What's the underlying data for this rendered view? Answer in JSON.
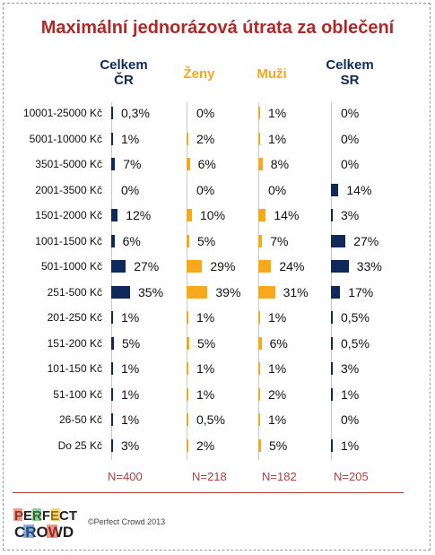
{
  "title": "Maximální jednorázová útrata za oblečení",
  "copyright": "©Perfect Crowd 2013",
  "logo": {
    "line1": "PERFECT",
    "line2": "CROWD"
  },
  "colors": {
    "dark": "#0f2a5a",
    "orange": "#f7a81b",
    "title": "#b02828",
    "n": "#b04040"
  },
  "chart_data": {
    "type": "bar",
    "title": "Maximální jednorázová útrata za oblečení",
    "categories": [
      "10001-25000 Kč",
      "5001-10000 Kč",
      "3501-5000 Kč",
      "2001-3500 Kč",
      "1501-2000 Kč",
      "1001-1500 Kč",
      "501-1000 Kč",
      "251-500 Kč",
      "201-250 Kč",
      "151-200 Kč",
      "101-150 Kč",
      "51-100 Kč",
      "26-50 Kč",
      "Do 25 Kč"
    ],
    "series": [
      {
        "name": "Celkem ČR",
        "head1": "Celkem",
        "head2": "ČR",
        "color": "#0f2a5a",
        "n": "N=400",
        "values": [
          0.3,
          1,
          7,
          0,
          12,
          6,
          27,
          35,
          1,
          5,
          1,
          1,
          1,
          3
        ],
        "labels": [
          "0,3%",
          "1%",
          "7%",
          "0%",
          "12%",
          "6%",
          "27%",
          "35%",
          "1%",
          "5%",
          "1%",
          "1%",
          "1%",
          "3%"
        ]
      },
      {
        "name": "Ženy",
        "head1": "Ženy",
        "head2": "",
        "color": "#f7a81b",
        "n": "N=218",
        "values": [
          0,
          2,
          6,
          0,
          10,
          5,
          29,
          39,
          1,
          5,
          1,
          1,
          0.5,
          2
        ],
        "labels": [
          "0%",
          "2%",
          "6%",
          "0%",
          "10%",
          "5%",
          "29%",
          "39%",
          "1%",
          "5%",
          "1%",
          "1%",
          "0,5%",
          "2%"
        ]
      },
      {
        "name": "Muži",
        "head1": "Muži",
        "head2": "",
        "color": "#f7a81b",
        "n": "N=182",
        "values": [
          1,
          1,
          8,
          0,
          14,
          7,
          24,
          31,
          1,
          6,
          1,
          2,
          1,
          5
        ],
        "labels": [
          "1%",
          "1%",
          "8%",
          "0%",
          "14%",
          "7%",
          "24%",
          "31%",
          "1%",
          "6%",
          "1%",
          "2%",
          "1%",
          "5%"
        ]
      },
      {
        "name": "Celkem SR",
        "head1": "Celkem",
        "head2": "SR",
        "color": "#0f2a5a",
        "n": "N=205",
        "values": [
          0,
          0,
          0,
          14,
          3,
          27,
          33,
          17,
          0.5,
          0.5,
          3,
          1,
          0,
          1
        ],
        "labels": [
          "0%",
          "0%",
          "0%",
          "14%",
          "3%",
          "27%",
          "33%",
          "17%",
          "0,5%",
          "0,5%",
          "3%",
          "1%",
          "0%",
          "1%"
        ]
      }
    ]
  }
}
